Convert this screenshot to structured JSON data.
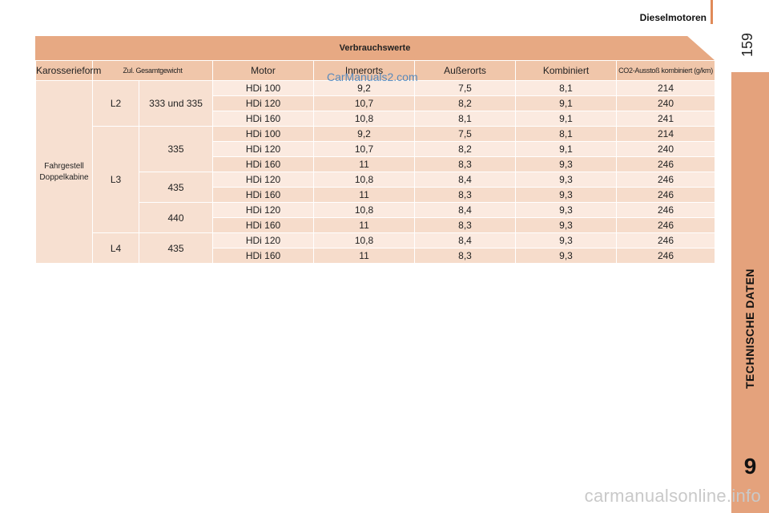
{
  "header": {
    "section_title": "Dieselmotoren",
    "page_number": "159"
  },
  "sidebar": {
    "chapter_label": "TECHNISCHE DATEN",
    "chapter_number": "9"
  },
  "table": {
    "title": "Verbrauchswerte",
    "columns": [
      "Karosserieform",
      "Zul. Gesamtgewicht",
      "Motor",
      "Innerorts",
      "Außerorts",
      "Kombiniert",
      "CO2-Ausstoß kombiniert (g/km)"
    ],
    "body_type_line1": "Fahrgestell",
    "body_type_line2": "Doppelkabine",
    "groups": [
      {
        "length": "L2",
        "weight": "333 und 335",
        "rows": [
          [
            "HDi 100",
            "9,2",
            "7,5",
            "8,1",
            "214"
          ],
          [
            "HDi 120",
            "10,7",
            "8,2",
            "9,1",
            "240"
          ],
          [
            "HDi 160",
            "10,8",
            "8,1",
            "9,1",
            "241"
          ]
        ]
      },
      {
        "length": "L3",
        "weight": "335",
        "rows": [
          [
            "HDi 100",
            "9,2",
            "7,5",
            "8,1",
            "214"
          ],
          [
            "HDi 120",
            "10,7",
            "8,2",
            "9,1",
            "240"
          ],
          [
            "HDi 160",
            "11",
            "8,3",
            "9,3",
            "246"
          ]
        ]
      },
      {
        "length": "",
        "weight": "435",
        "rows": [
          [
            "HDi 120",
            "10,8",
            "8,4",
            "9,3",
            "246"
          ],
          [
            "HDi 160",
            "11",
            "8,3",
            "9,3",
            "246"
          ]
        ]
      },
      {
        "length": "",
        "weight": "440",
        "rows": [
          [
            "HDi 120",
            "10,8",
            "8,4",
            "9,3",
            "246"
          ],
          [
            "HDi 160",
            "11",
            "8,3",
            "9,3",
            "246"
          ]
        ]
      },
      {
        "length": "L4",
        "weight": "435",
        "rows": [
          [
            "HDi 120",
            "10,8",
            "8,4",
            "9,3",
            "246"
          ],
          [
            "HDi 160",
            "11",
            "8,3",
            "9,3",
            "246"
          ]
        ]
      }
    ]
  },
  "watermark": "CarManuals2.com",
  "footer_watermark": "carmanualsonline.info",
  "colors": {
    "accent": "#e4a27c",
    "header_row": "#f0c6aa",
    "row_light": "#fbeae0",
    "row_dark": "#f6dccb"
  }
}
